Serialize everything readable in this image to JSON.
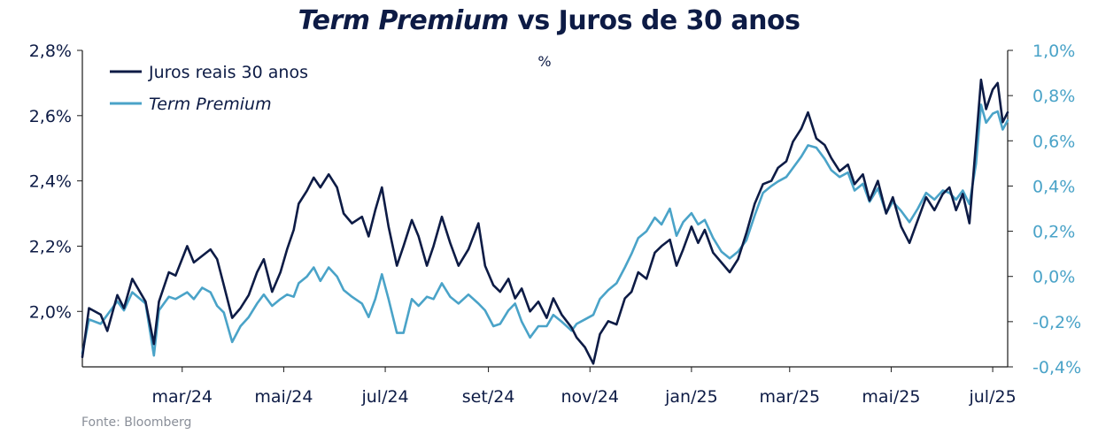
{
  "chart_data": {
    "type": "line",
    "title_main": "Term Premium",
    "title_rest": " vs Juros de 30 anos",
    "unit_label": "%",
    "source": "Fonte: Bloomberg",
    "legend_placement": "top-left",
    "grid": false,
    "x_range": [
      "2024-01-01",
      "2025-07-10"
    ],
    "x_tick_labels": [
      "mar/24",
      "mai/24",
      "jul/24",
      "set/24",
      "nov/24",
      "jan/25",
      "mar/25",
      "mai/25",
      "jul/25"
    ],
    "x_tick_dates": [
      "2024-03-01",
      "2024-05-01",
      "2024-07-01",
      "2024-09-01",
      "2024-11-01",
      "2025-01-01",
      "2025-03-01",
      "2025-05-01",
      "2025-07-01"
    ],
    "y_left": {
      "range": [
        1.83,
        2.8
      ],
      "ticks": [
        2.0,
        2.2,
        2.4,
        2.6,
        2.8
      ],
      "tick_labels": [
        "2,0%",
        "2,2%",
        "2,4%",
        "2,6%",
        "2,8%"
      ]
    },
    "y_right": {
      "range": [
        -0.4,
        1.0
      ],
      "ticks": [
        -0.4,
        -0.2,
        0.0,
        0.2,
        0.4,
        0.6,
        0.8,
        1.0
      ],
      "tick_labels": [
        "-0,4%",
        "-0,2%",
        "0,0%",
        "0,2%",
        "0,4%",
        "0,6%",
        "0,8%",
        "1,0%"
      ]
    },
    "series": [
      {
        "name": "Juros reais 30 anos",
        "axis": "left",
        "color": "#0d1b45",
        "points": [
          [
            "2024-01-01",
            1.86
          ],
          [
            "2024-01-05",
            2.01
          ],
          [
            "2024-01-12",
            1.99
          ],
          [
            "2024-01-16",
            1.94
          ],
          [
            "2024-01-22",
            2.05
          ],
          [
            "2024-01-26",
            2.01
          ],
          [
            "2024-01-31",
            2.1
          ],
          [
            "2024-02-08",
            2.03
          ],
          [
            "2024-02-13",
            1.9
          ],
          [
            "2024-02-16",
            2.03
          ],
          [
            "2024-02-22",
            2.12
          ],
          [
            "2024-02-26",
            2.11
          ],
          [
            "2024-03-04",
            2.2
          ],
          [
            "2024-03-08",
            2.15
          ],
          [
            "2024-03-13",
            2.17
          ],
          [
            "2024-03-18",
            2.19
          ],
          [
            "2024-03-22",
            2.16
          ],
          [
            "2024-03-26",
            2.08
          ],
          [
            "2024-03-31",
            1.98
          ],
          [
            "2024-04-05",
            2.01
          ],
          [
            "2024-04-10",
            2.05
          ],
          [
            "2024-04-15",
            2.12
          ],
          [
            "2024-04-19",
            2.16
          ],
          [
            "2024-04-24",
            2.06
          ],
          [
            "2024-04-29",
            2.12
          ],
          [
            "2024-05-03",
            2.19
          ],
          [
            "2024-05-07",
            2.25
          ],
          [
            "2024-05-10",
            2.33
          ],
          [
            "2024-05-15",
            2.37
          ],
          [
            "2024-05-19",
            2.41
          ],
          [
            "2024-05-23",
            2.38
          ],
          [
            "2024-05-28",
            2.42
          ],
          [
            "2024-06-02",
            2.38
          ],
          [
            "2024-06-06",
            2.3
          ],
          [
            "2024-06-11",
            2.27
          ],
          [
            "2024-06-17",
            2.29
          ],
          [
            "2024-06-21",
            2.23
          ],
          [
            "2024-06-25",
            2.31
          ],
          [
            "2024-06-29",
            2.38
          ],
          [
            "2024-07-03",
            2.26
          ],
          [
            "2024-07-08",
            2.14
          ],
          [
            "2024-07-12",
            2.2
          ],
          [
            "2024-07-17",
            2.28
          ],
          [
            "2024-07-21",
            2.23
          ],
          [
            "2024-07-26",
            2.14
          ],
          [
            "2024-07-30",
            2.2
          ],
          [
            "2024-08-04",
            2.29
          ],
          [
            "2024-08-09",
            2.21
          ],
          [
            "2024-08-14",
            2.14
          ],
          [
            "2024-08-20",
            2.19
          ],
          [
            "2024-08-26",
            2.27
          ],
          [
            "2024-08-30",
            2.14
          ],
          [
            "2024-09-04",
            2.08
          ],
          [
            "2024-09-08",
            2.06
          ],
          [
            "2024-09-13",
            2.1
          ],
          [
            "2024-09-17",
            2.04
          ],
          [
            "2024-09-21",
            2.07
          ],
          [
            "2024-09-26",
            2.0
          ],
          [
            "2024-10-01",
            2.03
          ],
          [
            "2024-10-06",
            1.98
          ],
          [
            "2024-10-10",
            2.04
          ],
          [
            "2024-10-15",
            1.99
          ],
          [
            "2024-10-21",
            1.95
          ],
          [
            "2024-10-24",
            1.92
          ],
          [
            "2024-10-29",
            1.89
          ],
          [
            "2024-11-03",
            1.84
          ],
          [
            "2024-11-07",
            1.93
          ],
          [
            "2024-11-12",
            1.97
          ],
          [
            "2024-11-17",
            1.96
          ],
          [
            "2024-11-22",
            2.04
          ],
          [
            "2024-11-26",
            2.06
          ],
          [
            "2024-11-30",
            2.12
          ],
          [
            "2024-12-05",
            2.1
          ],
          [
            "2024-12-10",
            2.18
          ],
          [
            "2024-12-14",
            2.2
          ],
          [
            "2024-12-19",
            2.22
          ],
          [
            "2024-12-23",
            2.14
          ],
          [
            "2024-12-27",
            2.19
          ],
          [
            "2025-01-01",
            2.26
          ],
          [
            "2025-01-05",
            2.21
          ],
          [
            "2025-01-09",
            2.25
          ],
          [
            "2025-01-14",
            2.18
          ],
          [
            "2025-01-19",
            2.15
          ],
          [
            "2025-01-24",
            2.12
          ],
          [
            "2025-01-29",
            2.16
          ],
          [
            "2025-02-03",
            2.24
          ],
          [
            "2025-02-08",
            2.33
          ],
          [
            "2025-02-13",
            2.39
          ],
          [
            "2025-02-18",
            2.4
          ],
          [
            "2025-02-22",
            2.44
          ],
          [
            "2025-02-27",
            2.46
          ],
          [
            "2025-03-03",
            2.52
          ],
          [
            "2025-03-08",
            2.56
          ],
          [
            "2025-03-12",
            2.61
          ],
          [
            "2025-03-17",
            2.53
          ],
          [
            "2025-03-22",
            2.51
          ],
          [
            "2025-03-26",
            2.47
          ],
          [
            "2025-03-31",
            2.43
          ],
          [
            "2025-04-05",
            2.45
          ],
          [
            "2025-04-09",
            2.39
          ],
          [
            "2025-04-14",
            2.42
          ],
          [
            "2025-04-18",
            2.34
          ],
          [
            "2025-04-23",
            2.4
          ],
          [
            "2025-04-28",
            2.3
          ],
          [
            "2025-05-02",
            2.35
          ],
          [
            "2025-05-07",
            2.26
          ],
          [
            "2025-05-12",
            2.21
          ],
          [
            "2025-05-17",
            2.28
          ],
          [
            "2025-05-22",
            2.35
          ],
          [
            "2025-05-27",
            2.31
          ],
          [
            "2025-06-01",
            2.36
          ],
          [
            "2025-06-05",
            2.38
          ],
          [
            "2025-06-09",
            2.31
          ],
          [
            "2025-06-13",
            2.36
          ],
          [
            "2025-06-17",
            2.27
          ],
          [
            "2025-06-21",
            2.52
          ],
          [
            "2025-06-24",
            2.71
          ],
          [
            "2025-06-27",
            2.62
          ],
          [
            "2025-07-01",
            2.68
          ],
          [
            "2025-07-04",
            2.7
          ],
          [
            "2025-07-07",
            2.58
          ],
          [
            "2025-07-10",
            2.61
          ]
        ]
      },
      {
        "name": "Term Premium",
        "axis": "right",
        "color": "#4aa3c8",
        "points": [
          [
            "2024-01-01",
            -0.34
          ],
          [
            "2024-01-05",
            -0.19
          ],
          [
            "2024-01-12",
            -0.21
          ],
          [
            "2024-01-16",
            -0.17
          ],
          [
            "2024-01-22",
            -0.11
          ],
          [
            "2024-01-26",
            -0.15
          ],
          [
            "2024-01-31",
            -0.07
          ],
          [
            "2024-02-08",
            -0.12
          ],
          [
            "2024-02-13",
            -0.35
          ],
          [
            "2024-02-16",
            -0.15
          ],
          [
            "2024-02-22",
            -0.09
          ],
          [
            "2024-02-26",
            -0.1
          ],
          [
            "2024-03-04",
            -0.07
          ],
          [
            "2024-03-08",
            -0.1
          ],
          [
            "2024-03-13",
            -0.05
          ],
          [
            "2024-03-18",
            -0.07
          ],
          [
            "2024-03-22",
            -0.13
          ],
          [
            "2024-03-26",
            -0.16
          ],
          [
            "2024-03-31",
            -0.29
          ],
          [
            "2024-04-05",
            -0.22
          ],
          [
            "2024-04-10",
            -0.18
          ],
          [
            "2024-04-15",
            -0.12
          ],
          [
            "2024-04-19",
            -0.08
          ],
          [
            "2024-04-24",
            -0.13
          ],
          [
            "2024-04-29",
            -0.1
          ],
          [
            "2024-05-03",
            -0.08
          ],
          [
            "2024-05-07",
            -0.09
          ],
          [
            "2024-05-10",
            -0.03
          ],
          [
            "2024-05-15",
            0.0
          ],
          [
            "2024-05-19",
            0.04
          ],
          [
            "2024-05-23",
            -0.02
          ],
          [
            "2024-05-28",
            0.04
          ],
          [
            "2024-06-02",
            0.0
          ],
          [
            "2024-06-06",
            -0.06
          ],
          [
            "2024-06-11",
            -0.09
          ],
          [
            "2024-06-17",
            -0.12
          ],
          [
            "2024-06-21",
            -0.18
          ],
          [
            "2024-06-25",
            -0.1
          ],
          [
            "2024-06-29",
            0.01
          ],
          [
            "2024-07-03",
            -0.1
          ],
          [
            "2024-07-08",
            -0.25
          ],
          [
            "2024-07-12",
            -0.25
          ],
          [
            "2024-07-17",
            -0.1
          ],
          [
            "2024-07-21",
            -0.13
          ],
          [
            "2024-07-26",
            -0.09
          ],
          [
            "2024-07-30",
            -0.1
          ],
          [
            "2024-08-04",
            -0.03
          ],
          [
            "2024-08-09",
            -0.09
          ],
          [
            "2024-08-14",
            -0.12
          ],
          [
            "2024-08-20",
            -0.08
          ],
          [
            "2024-08-26",
            -0.12
          ],
          [
            "2024-08-30",
            -0.15
          ],
          [
            "2024-09-04",
            -0.22
          ],
          [
            "2024-09-08",
            -0.21
          ],
          [
            "2024-09-13",
            -0.15
          ],
          [
            "2024-09-17",
            -0.12
          ],
          [
            "2024-09-21",
            -0.2
          ],
          [
            "2024-09-26",
            -0.27
          ],
          [
            "2024-10-01",
            -0.22
          ],
          [
            "2024-10-06",
            -0.22
          ],
          [
            "2024-10-10",
            -0.17
          ],
          [
            "2024-10-15",
            -0.2
          ],
          [
            "2024-10-21",
            -0.24
          ],
          [
            "2024-10-24",
            -0.21
          ],
          [
            "2024-10-29",
            -0.19
          ],
          [
            "2024-11-03",
            -0.17
          ],
          [
            "2024-11-07",
            -0.1
          ],
          [
            "2024-11-12",
            -0.06
          ],
          [
            "2024-11-17",
            -0.03
          ],
          [
            "2024-11-22",
            0.04
          ],
          [
            "2024-11-26",
            0.1
          ],
          [
            "2024-11-30",
            0.17
          ],
          [
            "2024-12-05",
            0.2
          ],
          [
            "2024-12-10",
            0.26
          ],
          [
            "2024-12-14",
            0.23
          ],
          [
            "2024-12-19",
            0.3
          ],
          [
            "2024-12-23",
            0.18
          ],
          [
            "2024-12-27",
            0.24
          ],
          [
            "2025-01-01",
            0.28
          ],
          [
            "2025-01-05",
            0.23
          ],
          [
            "2025-01-09",
            0.25
          ],
          [
            "2025-01-14",
            0.17
          ],
          [
            "2025-01-19",
            0.11
          ],
          [
            "2025-01-24",
            0.08
          ],
          [
            "2025-01-29",
            0.11
          ],
          [
            "2025-02-03",
            0.16
          ],
          [
            "2025-02-08",
            0.27
          ],
          [
            "2025-02-13",
            0.37
          ],
          [
            "2025-02-18",
            0.4
          ],
          [
            "2025-02-22",
            0.42
          ],
          [
            "2025-02-27",
            0.44
          ],
          [
            "2025-03-03",
            0.48
          ],
          [
            "2025-03-08",
            0.53
          ],
          [
            "2025-03-12",
            0.58
          ],
          [
            "2025-03-17",
            0.57
          ],
          [
            "2025-03-22",
            0.52
          ],
          [
            "2025-03-26",
            0.47
          ],
          [
            "2025-03-31",
            0.44
          ],
          [
            "2025-04-05",
            0.46
          ],
          [
            "2025-04-09",
            0.38
          ],
          [
            "2025-04-14",
            0.41
          ],
          [
            "2025-04-18",
            0.33
          ],
          [
            "2025-04-23",
            0.39
          ],
          [
            "2025-04-28",
            0.28
          ],
          [
            "2025-05-02",
            0.33
          ],
          [
            "2025-05-07",
            0.29
          ],
          [
            "2025-05-12",
            0.24
          ],
          [
            "2025-05-17",
            0.3
          ],
          [
            "2025-05-22",
            0.37
          ],
          [
            "2025-05-27",
            0.34
          ],
          [
            "2025-06-01",
            0.38
          ],
          [
            "2025-06-05",
            0.37
          ],
          [
            "2025-06-09",
            0.34
          ],
          [
            "2025-06-13",
            0.38
          ],
          [
            "2025-06-17",
            0.32
          ],
          [
            "2025-06-21",
            0.5
          ],
          [
            "2025-06-24",
            0.76
          ],
          [
            "2025-06-27",
            0.68
          ],
          [
            "2025-07-01",
            0.72
          ],
          [
            "2025-07-04",
            0.73
          ],
          [
            "2025-07-07",
            0.65
          ],
          [
            "2025-07-10",
            0.69
          ]
        ]
      }
    ]
  }
}
